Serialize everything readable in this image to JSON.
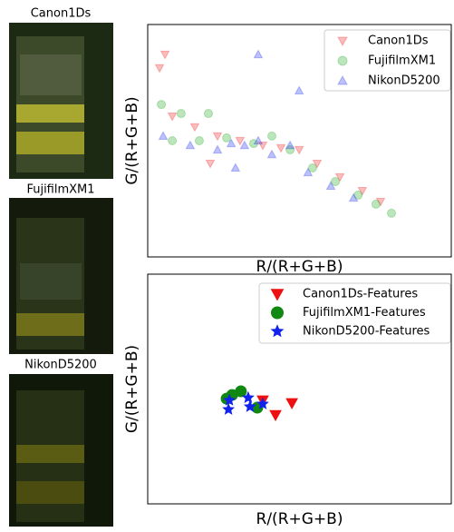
{
  "images": [
    {
      "label": "Canon1Ds"
    },
    {
      "label": "FujifilmXM1"
    },
    {
      "label": "NikonD5200"
    }
  ],
  "chart_data": [
    {
      "type": "scatter",
      "xlabel": "R/(R+G+B)",
      "ylabel": "G/(R+G+B)",
      "xlim": [
        0,
        1
      ],
      "ylim": [
        0,
        1
      ],
      "legend": "upper right",
      "opacity": 0.3,
      "series": [
        {
          "name": "Canon1Ds",
          "color": "#ee2222",
          "marker": "triangle-down",
          "x": [
            0.057,
            0.039,
            0.081,
            0.155,
            0.23,
            0.304,
            0.379,
            0.439,
            0.499,
            0.558,
            0.633,
            0.707,
            0.767,
            0.206
          ],
          "values": [
            0.871,
            0.813,
            0.605,
            0.559,
            0.52,
            0.5,
            0.48,
            0.469,
            0.461,
            0.402,
            0.344,
            0.285,
            0.238,
            0.402
          ]
        },
        {
          "name": "FujifilmXM1",
          "color": "#22aa22",
          "marker": "circle",
          "x": [
            0.045,
            0.11,
            0.081,
            0.17,
            0.26,
            0.349,
            0.409,
            0.469,
            0.543,
            0.618,
            0.693,
            0.752,
            0.803,
            0.2
          ],
          "values": [
            0.656,
            0.617,
            0.5,
            0.5,
            0.512,
            0.488,
            0.52,
            0.461,
            0.383,
            0.324,
            0.266,
            0.227,
            0.188,
            0.617
          ]
        },
        {
          "name": "NikonD5200",
          "color": "#2233ee",
          "marker": "triangle-up",
          "x": [
            0.051,
            0.14,
            0.23,
            0.275,
            0.319,
            0.364,
            0.409,
            0.469,
            0.289,
            0.528,
            0.603,
            0.678,
            0.364,
            0.499
          ],
          "values": [
            0.52,
            0.48,
            0.461,
            0.488,
            0.48,
            0.5,
            0.441,
            0.48,
            0.383,
            0.363,
            0.305,
            0.254,
            0.871,
            0.715
          ]
        }
      ]
    },
    {
      "type": "scatter",
      "xlabel": "R/(R+G+B)",
      "ylabel": "G/(R+G+B)",
      "xlim": [
        0,
        1
      ],
      "ylim": [
        0,
        1
      ],
      "legend": "upper right",
      "opacity": 1,
      "series": [
        {
          "name": "Canon1Ds-Features",
          "color": "#ee1111",
          "marker": "triangle-down",
          "x": [
            0.379,
            0.421,
            0.475
          ],
          "values": [
            0.451,
            0.387,
            0.439
          ]
        },
        {
          "name": "FujifilmXM1-Features",
          "color": "#118811",
          "marker": "circle",
          "x": [
            0.26,
            0.278,
            0.307,
            0.361
          ],
          "values": [
            0.458,
            0.474,
            0.49,
            0.419
          ]
        },
        {
          "name": "NikonD5200-Features",
          "color": "#1122ee",
          "marker": "star",
          "x": [
            0.266,
            0.269,
            0.331,
            0.337,
            0.379
          ],
          "values": [
            0.411,
            0.451,
            0.462,
            0.423,
            0.435
          ]
        }
      ]
    }
  ]
}
